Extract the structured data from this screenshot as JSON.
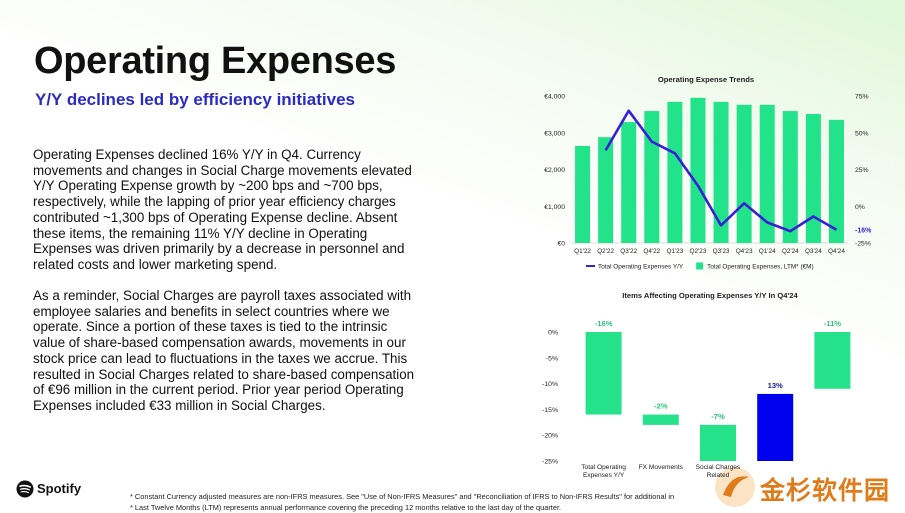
{
  "title": "Operating Expenses",
  "subtitle": "Y/Y declines led by efficiency initiatives",
  "paragraphs": [
    "Operating Expenses declined 16% Y/Y in Q4. Currency movements and changes in Social Charge movements elevated Y/Y Operating Expense growth by ~200 bps and ~700 bps, respectively, while the lapping of prior year efficiency charges contributed ~1,300 bps of Operating Expense decline. Absent these items, the remaining 11% Y/Y decline in Operating Expenses was driven primarily by a decrease in personnel and related costs and lower marketing spend.",
    "As a reminder, Social Charges are payroll taxes associated with employee salaries and benefits in select countries where we operate. Since a portion of these taxes is tied to the intrinsic value of share-based compensation awards, movements in our stock price can lead to fluctuations in the taxes we accrue. This resulted in Social Charges related to share-based compensation of €96 million in the current period. Prior year period Operating Expenses included €33 million in Social Charges."
  ],
  "logo": "Spotify",
  "footnotes": [
    "* Constant Currency adjusted measures are non-IFRS measures. See \"Use of Non-IFRS Measures\" and \"Reconciliation of IFRS to Non-IFRS Results\" for additional in",
    "* Last Twelve Months (LTM) represents annual performance covering the preceding 12 months relative to the last day of the quarter."
  ],
  "watermark": "金杉软件园",
  "chart_data": [
    {
      "type": "combo",
      "title": "Operating Expense Trends",
      "categories": [
        "Q1'22",
        "Q2'22",
        "Q3'22",
        "Q4'22",
        "Q1'23",
        "Q2'23",
        "Q3'23",
        "Q4'23",
        "Q1'24",
        "Q2'24",
        "Q3'24",
        "Q4'24"
      ],
      "series": [
        {
          "name": "Total Operating Expenses Y/Y",
          "type": "line",
          "axis": "y2",
          "color": "#3a1fd6",
          "values": [
            null,
            38,
            65,
            44,
            36,
            14,
            -13,
            2,
            -11,
            -17,
            -7,
            -16
          ],
          "value_labels": [
            null,
            null,
            null,
            null,
            null,
            null,
            null,
            null,
            null,
            null,
            null,
            "-16%"
          ]
        },
        {
          "name": "Total Operating Expenses, LTM* (€M)",
          "type": "bar",
          "color": "#22e389",
          "values": [
            2640,
            2880,
            3290,
            3590,
            3840,
            3950,
            3840,
            3760,
            3760,
            3590,
            3510,
            3350
          ]
        }
      ],
      "ylim": [
        0,
        4000
      ],
      "yticks": [
        {
          "value": 0,
          "label": "€0"
        },
        {
          "value": 1000,
          "label": "€1,000"
        },
        {
          "value": 2000,
          "label": "€2,000"
        },
        {
          "value": 3000,
          "label": "€3,000"
        },
        {
          "value": 4000,
          "label": "€4,000"
        }
      ],
      "y2lim": [
        -25,
        75
      ],
      "y2ticks": [
        {
          "value": -25,
          "label": "-25%"
        },
        {
          "value": 0,
          "label": "0%"
        },
        {
          "value": 25,
          "label": "25%"
        },
        {
          "value": 50,
          "label": "50%"
        },
        {
          "value": 75,
          "label": "75%"
        }
      ]
    },
    {
      "type": "waterfall",
      "title": "Items Affecting Operating Expenses Y/Y In Q4'24",
      "categories": [
        "Total Operating Expenses Y/Y",
        "FX Movements",
        "Social Charges Related",
        null,
        null
      ],
      "values": [
        -16,
        -2,
        -7,
        13,
        -11
      ],
      "value_labels": [
        "-16%",
        "-2%",
        "-7%",
        "13%",
        "-11%"
      ],
      "totals": [
        0,
        4
      ],
      "color": "#25e28b",
      "increase_color": "#0000ee",
      "ylim": [
        -25,
        0
      ],
      "yticks": [
        {
          "value": -25,
          "label": "-25%"
        },
        {
          "value": -20,
          "label": "-20%"
        },
        {
          "value": -15,
          "label": "-15%"
        },
        {
          "value": -10,
          "label": "-10%"
        },
        {
          "value": -5,
          "label": "-5%"
        },
        {
          "value": 0,
          "label": "0%"
        }
      ]
    }
  ]
}
